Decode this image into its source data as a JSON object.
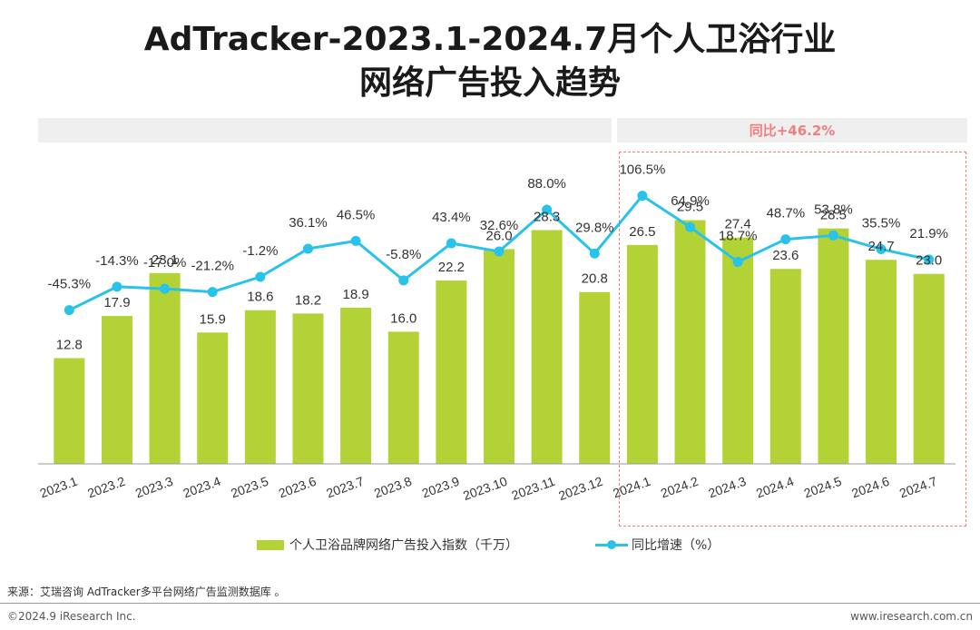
{
  "title": {
    "line1": "AdTracker-2023.1-2024.7月个人卫浴行业",
    "line2": "网络广告投入趋势"
  },
  "yoy_box_label": "同比+46.2%",
  "chart_data": {
    "type": "bar",
    "title": "AdTracker-2023.1-2024.7月个人卫浴行业网络广告投入趋势",
    "categories": [
      "2023.1",
      "2023.2",
      "2023.3",
      "2023.4",
      "2023.5",
      "2023.6",
      "2023.7",
      "2023.8",
      "2023.9",
      "2023.10",
      "2023.11",
      "2023.12",
      "2024.1",
      "2024.2",
      "2024.3",
      "2024.4",
      "2024.5",
      "2024.6",
      "2024.7"
    ],
    "series": [
      {
        "name": "个人卫浴品牌网络广告投入指数（千万）",
        "type": "bar",
        "values": [
          12.8,
          17.9,
          23.1,
          15.9,
          18.6,
          18.2,
          18.9,
          16.0,
          22.2,
          26.0,
          28.3,
          20.8,
          26.5,
          29.5,
          27.4,
          23.6,
          28.5,
          24.7,
          23.0
        ],
        "labels": [
          "12.8",
          "17.9",
          "23.1",
          "15.9",
          "18.6",
          "18.2",
          "18.9",
          "16.0",
          "22.2",
          "26.0",
          "28.3",
          "20.8",
          "26.5",
          "29.5",
          "27.4",
          "23.6",
          "28.5",
          "24.7",
          "23.0"
        ],
        "color": "#b3d235"
      },
      {
        "name": "同比增速（%）",
        "type": "line",
        "values": [
          -45.3,
          -14.3,
          -17.0,
          -21.2,
          -1.2,
          36.1,
          46.5,
          -5.8,
          43.4,
          32.6,
          88.0,
          29.8,
          106.5,
          64.9,
          18.7,
          48.7,
          53.8,
          35.5,
          21.9
        ],
        "labels": [
          "-45.3%",
          "-14.3%",
          "-17.0%",
          "-21.2%",
          "-1.2%",
          "36.1%",
          "46.5%",
          "-5.8%",
          "43.4%",
          "32.6%",
          "88.0%",
          "29.8%",
          "106.5%",
          "64.9%",
          "18.7%",
          "48.7%",
          "53.8%",
          "35.5%",
          "21.9%"
        ],
        "color": "#29c2ea"
      }
    ],
    "bar_ylim": [
      0,
      42
    ],
    "line_ylim": [
      -100,
      200
    ],
    "legend_position": "bottom"
  },
  "legend": {
    "bar_label": "个人卫浴品牌网络广告投入指数（千万）",
    "line_label": "同比增速（%）"
  },
  "footer": {
    "source": "来源：艾瑞咨询 AdTracker多平台网络广告监测数据库 。",
    "copyright": "©2024.9 iResearch Inc.",
    "website": "www.iresearch.com.cn"
  }
}
